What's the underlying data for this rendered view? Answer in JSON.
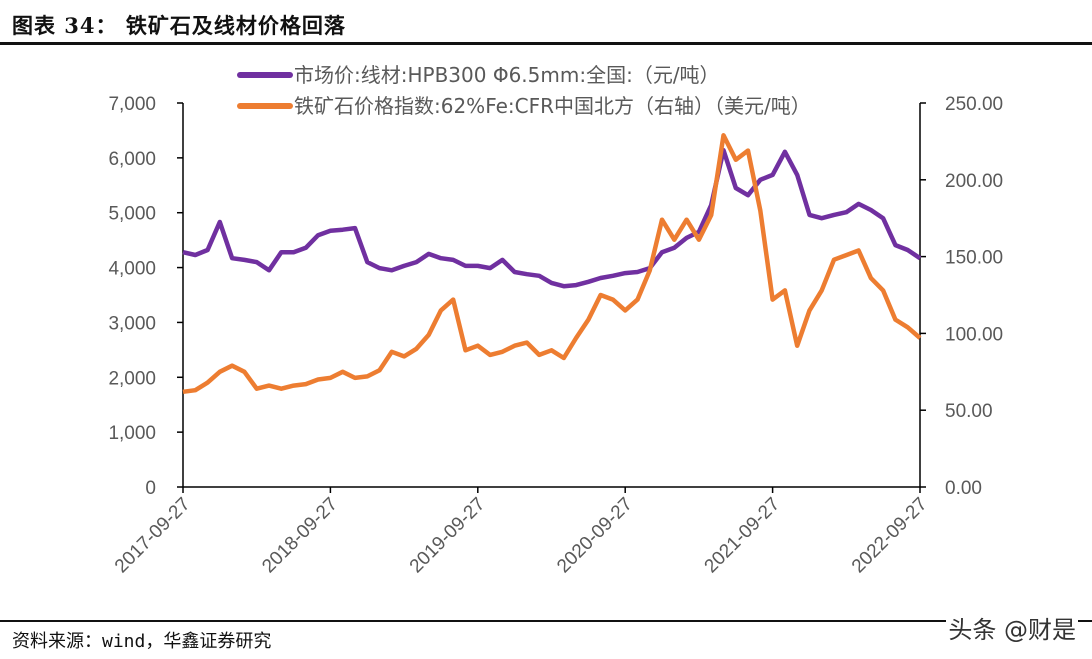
{
  "header": {
    "title": "图表 34：  铁矿石及线材价格回落"
  },
  "footer": {
    "source": "资料来源：wind，华鑫证券研究",
    "watermark": "头条 @财是"
  },
  "chart_data": {
    "type": "line",
    "title": "",
    "x": [
      "2017-09",
      "2017-10",
      "2017-11",
      "2017-12",
      "2018-01",
      "2018-02",
      "2018-03",
      "2018-04",
      "2018-05",
      "2018-06",
      "2018-07",
      "2018-08",
      "2018-09",
      "2018-10",
      "2018-11",
      "2018-12",
      "2019-01",
      "2019-02",
      "2019-03",
      "2019-04",
      "2019-05",
      "2019-06",
      "2019-07",
      "2019-08",
      "2019-09",
      "2019-10",
      "2019-11",
      "2019-12",
      "2020-01",
      "2020-02",
      "2020-03",
      "2020-04",
      "2020-05",
      "2020-06",
      "2020-07",
      "2020-08",
      "2020-09",
      "2020-10",
      "2020-11",
      "2020-12",
      "2021-01",
      "2021-02",
      "2021-03",
      "2021-04",
      "2021-05",
      "2021-06",
      "2021-07",
      "2021-08",
      "2021-09",
      "2021-10",
      "2021-11",
      "2021-12",
      "2022-01",
      "2022-02",
      "2022-03",
      "2022-04",
      "2022-05",
      "2022-06",
      "2022-07",
      "2022-08",
      "2022-09"
    ],
    "x_tick_labels": [
      "2017-09-27",
      "2018-09-27",
      "2019-09-27",
      "2020-09-27",
      "2021-09-27",
      "2022-09-27"
    ],
    "y_left": {
      "lim": [
        0,
        7000
      ],
      "ticks": [
        "0",
        "1,000",
        "2,000",
        "3,000",
        "4,000",
        "5,000",
        "6,000",
        "7,000"
      ]
    },
    "y_right": {
      "lim": [
        0,
        250
      ],
      "ticks": [
        "0.00",
        "50.00",
        "100.00",
        "150.00",
        "200.00",
        "250.00"
      ]
    },
    "grid": false,
    "legend_position": "top",
    "series": [
      {
        "name": "市场价:线材:HPB300 Φ6.5mm:全国:（元/吨）",
        "axis": "left",
        "color": "#7030A0",
        "values": [
          4280,
          4230,
          4320,
          4830,
          4170,
          4140,
          4100,
          3950,
          4280,
          4280,
          4360,
          4590,
          4670,
          4690,
          4720,
          4100,
          3990,
          3950,
          4030,
          4100,
          4250,
          4170,
          4140,
          4030,
          4030,
          3990,
          4140,
          3920,
          3880,
          3850,
          3720,
          3660,
          3680,
          3740,
          3810,
          3850,
          3900,
          3920,
          3990,
          4280,
          4360,
          4540,
          4650,
          5140,
          6140,
          5450,
          5320,
          5600,
          5690,
          6110,
          5690,
          4960,
          4900,
          4960,
          5010,
          5160,
          5050,
          4900,
          4410,
          4320,
          4170
        ]
      },
      {
        "name": "铁矿石价格指数:62%Fe:CFR中国北方（右轴）（美元/吨）",
        "axis": "right",
        "color": "#ED7D31",
        "values": [
          62,
          63,
          68,
          75,
          79,
          75,
          64,
          66,
          64,
          66,
          67,
          70,
          71,
          75,
          71,
          72,
          76,
          88,
          85,
          90,
          99,
          115,
          122,
          89,
          92,
          86,
          88,
          92,
          94,
          86,
          89,
          84,
          97,
          109,
          125,
          122,
          115,
          122,
          141,
          174,
          161,
          174,
          161,
          177,
          229,
          213,
          219,
          180,
          122,
          128,
          92,
          115,
          128,
          148,
          151,
          154,
          136,
          128,
          109,
          104,
          97
        ]
      }
    ]
  }
}
